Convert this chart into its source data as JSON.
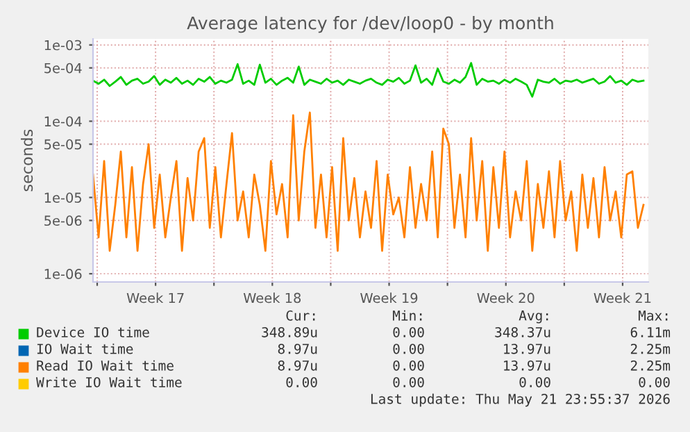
{
  "chart_data": {
    "type": "line",
    "title": "Average latency for /dev/loop0 - by month",
    "ylabel": "seconds",
    "log": "y",
    "ylim": [
      7.8e-07,
      0.0012
    ],
    "yticks": [
      {
        "value": 0.001,
        "label": "1e-03"
      },
      {
        "value": 0.0005,
        "label": "5e-04"
      },
      {
        "value": 0.0001,
        "label": "1e-04"
      },
      {
        "value": 5e-05,
        "label": "5e-05"
      },
      {
        "value": 1e-05,
        "label": "1e-05"
      },
      {
        "value": 5e-06,
        "label": "5e-06"
      },
      {
        "value": 1e-06,
        "label": "1e-06"
      }
    ],
    "xlim": [
      "2026-04-19T18:00",
      "2026-05-23T01:00"
    ],
    "xticks": [
      {
        "value": "2026-04-20",
        "label": null
      },
      {
        "value": "2026-04-23T12:00",
        "label": "Week 17"
      },
      {
        "value": "2026-04-27",
        "label": null
      },
      {
        "value": "2026-04-30T12:00",
        "label": "Week 18"
      },
      {
        "value": "2026-05-04",
        "label": null
      },
      {
        "value": "2026-05-07T12:00",
        "label": "Week 19"
      },
      {
        "value": "2026-05-11",
        "label": null
      },
      {
        "value": "2026-05-14T12:00",
        "label": "Week 20"
      },
      {
        "value": "2026-05-18",
        "label": null
      },
      {
        "value": "2026-05-21T12:00",
        "label": "Week 21"
      }
    ],
    "grid": true,
    "legend": "bottom",
    "x": [
      "2026-04-19T18:00",
      "2026-04-20T02:00",
      "2026-04-20T10:00",
      "2026-04-20T18:00",
      "2026-04-21T02:00",
      "2026-04-21T10:00",
      "2026-04-21T18:00",
      "2026-04-22T02:00",
      "2026-04-22T10:00",
      "2026-04-22T18:00",
      "2026-04-23T02:00",
      "2026-04-23T10:00",
      "2026-04-23T18:00",
      "2026-04-24T02:00",
      "2026-04-24T10:00",
      "2026-04-24T18:00",
      "2026-04-25T02:00",
      "2026-04-25T10:00",
      "2026-04-25T18:00",
      "2026-04-26T02:00",
      "2026-04-26T10:00",
      "2026-04-26T18:00",
      "2026-04-27T02:00",
      "2026-04-27T10:00",
      "2026-04-27T18:00",
      "2026-04-28T02:00",
      "2026-04-28T10:00",
      "2026-04-28T18:00",
      "2026-04-29T02:00",
      "2026-04-29T10:00",
      "2026-04-29T18:00",
      "2026-04-30T02:00",
      "2026-04-30T10:00",
      "2026-04-30T18:00",
      "2026-05-01T02:00",
      "2026-05-01T10:00",
      "2026-05-01T18:00",
      "2026-05-02T02:00",
      "2026-05-02T10:00",
      "2026-05-02T18:00",
      "2026-05-03T02:00",
      "2026-05-03T10:00",
      "2026-05-03T18:00",
      "2026-05-04T02:00",
      "2026-05-04T10:00",
      "2026-05-04T18:00",
      "2026-05-05T02:00",
      "2026-05-05T10:00",
      "2026-05-05T18:00",
      "2026-05-06T02:00",
      "2026-05-06T10:00",
      "2026-05-06T18:00",
      "2026-05-07T02:00",
      "2026-05-07T10:00",
      "2026-05-07T18:00",
      "2026-05-08T02:00",
      "2026-05-08T10:00",
      "2026-05-08T18:00",
      "2026-05-09T02:00",
      "2026-05-09T10:00",
      "2026-05-09T18:00",
      "2026-05-10T02:00",
      "2026-05-10T10:00",
      "2026-05-10T18:00",
      "2026-05-11T02:00",
      "2026-05-11T10:00",
      "2026-05-11T18:00",
      "2026-05-12T02:00",
      "2026-05-12T10:00",
      "2026-05-12T18:00",
      "2026-05-13T02:00",
      "2026-05-13T10:00",
      "2026-05-13T18:00",
      "2026-05-14T02:00",
      "2026-05-14T10:00",
      "2026-05-14T18:00",
      "2026-05-15T02:00",
      "2026-05-15T10:00",
      "2026-05-15T18:00",
      "2026-05-16T02:00",
      "2026-05-16T10:00",
      "2026-05-16T18:00",
      "2026-05-17T02:00",
      "2026-05-17T10:00",
      "2026-05-17T18:00",
      "2026-05-18T02:00",
      "2026-05-18T10:00",
      "2026-05-18T18:00",
      "2026-05-19T02:00",
      "2026-05-19T10:00",
      "2026-05-19T18:00",
      "2026-05-20T02:00",
      "2026-05-20T10:00",
      "2026-05-20T18:00",
      "2026-05-21T02:00",
      "2026-05-21T10:00",
      "2026-05-21T18:00",
      "2026-05-22T02:00",
      "2026-05-22T10:00",
      "2026-05-22T18:00"
    ],
    "series": [
      {
        "name": "Device IO time",
        "color": "#00cc00",
        "values": [
          0.00034,
          0.00031,
          0.00035,
          0.00029,
          0.00033,
          0.00038,
          0.0003,
          0.00034,
          0.00036,
          0.00031,
          0.00033,
          0.00039,
          0.0003,
          0.00035,
          0.00032,
          0.00037,
          0.00031,
          0.00034,
          0.0003,
          0.00036,
          0.00033,
          0.00038,
          0.00031,
          0.00034,
          0.00032,
          0.00035,
          0.00056,
          0.00031,
          0.00034,
          0.0003,
          0.00055,
          0.00032,
          0.00036,
          0.0003,
          0.00034,
          0.00037,
          0.00032,
          0.00052,
          0.0003,
          0.00035,
          0.00033,
          0.00031,
          0.00036,
          0.00032,
          0.00034,
          0.0003,
          0.00035,
          0.00033,
          0.00031,
          0.00034,
          0.00036,
          0.00032,
          0.0003,
          0.00035,
          0.00033,
          0.00037,
          0.00031,
          0.00034,
          0.00054,
          0.00032,
          0.00036,
          0.0003,
          0.00049,
          0.00033,
          0.00031,
          0.00035,
          0.00032,
          0.00038,
          0.00058,
          0.0003,
          0.00036,
          0.00033,
          0.00034,
          0.00031,
          0.00035,
          0.00032,
          0.00036,
          0.00033,
          0.0003,
          0.00021,
          0.00035,
          0.00033,
          0.00032,
          0.00036,
          0.00031,
          0.00034,
          0.00033,
          0.00035,
          0.00032,
          0.00034,
          0.00036,
          0.00031,
          0.00033,
          0.00039,
          0.00032,
          0.00034,
          0.0003,
          0.00035,
          0.00033,
          0.00034
        ]
      },
      {
        "name": "IO Wait time",
        "color": "#0066b3",
        "values": [
          null,
          null,
          null,
          null,
          null,
          null,
          null,
          null,
          null,
          null,
          null,
          null,
          null,
          null,
          null,
          null,
          null,
          null,
          null,
          null,
          null,
          null,
          null,
          null,
          null,
          null,
          null,
          null,
          null,
          null,
          null,
          null,
          null,
          null,
          null,
          null,
          null,
          null,
          null,
          null,
          null,
          null,
          null,
          null,
          null,
          null,
          null,
          null,
          null,
          null,
          null,
          null,
          null,
          null,
          null,
          null,
          null,
          null,
          null,
          null,
          null,
          null,
          null,
          null,
          null,
          null,
          null,
          null,
          null,
          null,
          null,
          null,
          null,
          null,
          null,
          null,
          null,
          null,
          null,
          null,
          null,
          null,
          null,
          null,
          null,
          null,
          null,
          null,
          null,
          null,
          null,
          null,
          null,
          null,
          null,
          null,
          null,
          null,
          null,
          null
        ]
      },
      {
        "name": "Read IO Wait time",
        "color": "#ff8000",
        "values": [
          2e-05,
          3e-06,
          3e-05,
          2e-06,
          8e-06,
          4e-05,
          3e-06,
          2.5e-05,
          2e-06,
          1.5e-05,
          5e-05,
          4e-06,
          2e-05,
          3e-06,
          1e-05,
          3e-05,
          2e-06,
          1.8e-05,
          5e-06,
          4e-05,
          6e-05,
          4e-06,
          2.5e-05,
          3e-06,
          1.5e-05,
          7e-05,
          5e-06,
          1.2e-05,
          3e-06,
          2e-05,
          8e-06,
          2e-06,
          3e-05,
          6e-06,
          1.5e-05,
          3e-06,
          0.00012,
          5e-06,
          4e-05,
          0.00013,
          4e-06,
          2e-05,
          3e-06,
          2.5e-05,
          2e-06,
          6e-05,
          5e-06,
          1.8e-05,
          3e-06,
          1.2e-05,
          4e-06,
          3e-05,
          2e-06,
          2e-05,
          6e-06,
          1e-05,
          3e-06,
          2.5e-05,
          4e-06,
          1.5e-05,
          5e-06,
          4e-05,
          3e-06,
          8e-05,
          5e-05,
          4e-06,
          2e-05,
          3e-06,
          6e-05,
          5e-06,
          3e-05,
          2e-06,
          2.5e-05,
          4e-06,
          4e-05,
          3e-06,
          1.2e-05,
          5e-06,
          3e-05,
          2e-06,
          1.5e-05,
          4e-06,
          2.2e-05,
          3e-06,
          3e-05,
          5e-06,
          1.2e-05,
          2e-06,
          2e-05,
          4e-06,
          1.8e-05,
          3e-06,
          2.5e-05,
          5e-06,
          1.2e-05,
          3e-06,
          2e-05,
          2.2e-05,
          4e-06,
          8e-06
        ]
      },
      {
        "name": "Write IO Wait time",
        "color": "#ffcc00",
        "values": [
          null,
          null,
          null,
          null,
          null,
          null,
          null,
          null,
          null,
          null,
          null,
          null,
          null,
          null,
          null,
          null,
          null,
          null,
          null,
          null,
          null,
          null,
          null,
          null,
          null,
          null,
          null,
          null,
          null,
          null,
          null,
          null,
          null,
          null,
          null,
          null,
          null,
          null,
          null,
          null,
          null,
          null,
          null,
          null,
          null,
          null,
          null,
          null,
          null,
          null,
          null,
          null,
          null,
          null,
          null,
          null,
          null,
          null,
          null,
          null,
          null,
          null,
          null,
          null,
          null,
          null,
          null,
          null,
          null,
          null,
          null,
          null,
          null,
          null,
          null,
          null,
          null,
          null,
          null,
          null,
          null,
          null,
          null,
          null,
          null,
          null,
          null,
          null,
          null,
          null,
          null,
          null,
          null,
          null,
          null,
          null,
          null,
          null,
          null,
          null
        ]
      }
    ],
    "annotations": [
      "Cur:",
      "Min:",
      "Avg:",
      "Max:",
      "348.89u",
      "0.00",
      "348.37u",
      "6.11m",
      "8.97u",
      "0.00",
      "13.97u",
      "2.25m",
      "8.97u",
      "0.00",
      "13.97u",
      "2.25m",
      "0.00",
      "0.00",
      "0.00",
      "0.00",
      "Last update: Thu May 21 23:55:37 2026"
    ]
  }
}
